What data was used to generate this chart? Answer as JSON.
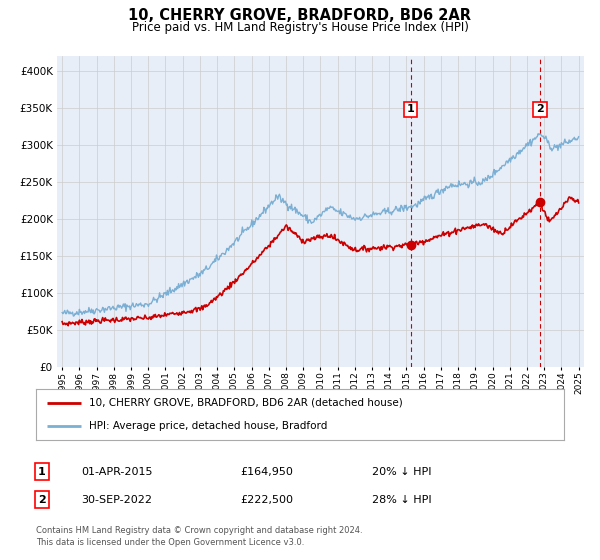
{
  "title": "10, CHERRY GROVE, BRADFORD, BD6 2AR",
  "subtitle": "Price paid vs. HM Land Registry's House Price Index (HPI)",
  "title_fontsize": 10.5,
  "subtitle_fontsize": 9,
  "red_label": "10, CHERRY GROVE, BRADFORD, BD6 2AR (detached house)",
  "blue_label": "HPI: Average price, detached house, Bradford",
  "marker1_date": 2015.25,
  "marker1_value": 164950,
  "marker1_label": "1",
  "marker1_text": "01-APR-2015",
  "marker1_price": "£164,950",
  "marker1_hpi": "20% ↓ HPI",
  "marker2_date": 2022.75,
  "marker2_value": 222500,
  "marker2_label": "2",
  "marker2_text": "30-SEP-2022",
  "marker2_price": "£222,500",
  "marker2_hpi": "28% ↓ HPI",
  "ylim_max": 420000,
  "xlim_start": 1994.7,
  "xlim_end": 2025.3,
  "red_color": "#cc0000",
  "blue_color": "#7bafd4",
  "marker_dot_color": "#cc0000",
  "grid_color": "#cccccc",
  "background_color": "#e8eef8",
  "footer_text1": "Contains HM Land Registry data © Crown copyright and database right 2024.",
  "footer_text2": "This data is licensed under the Open Government Licence v3.0."
}
